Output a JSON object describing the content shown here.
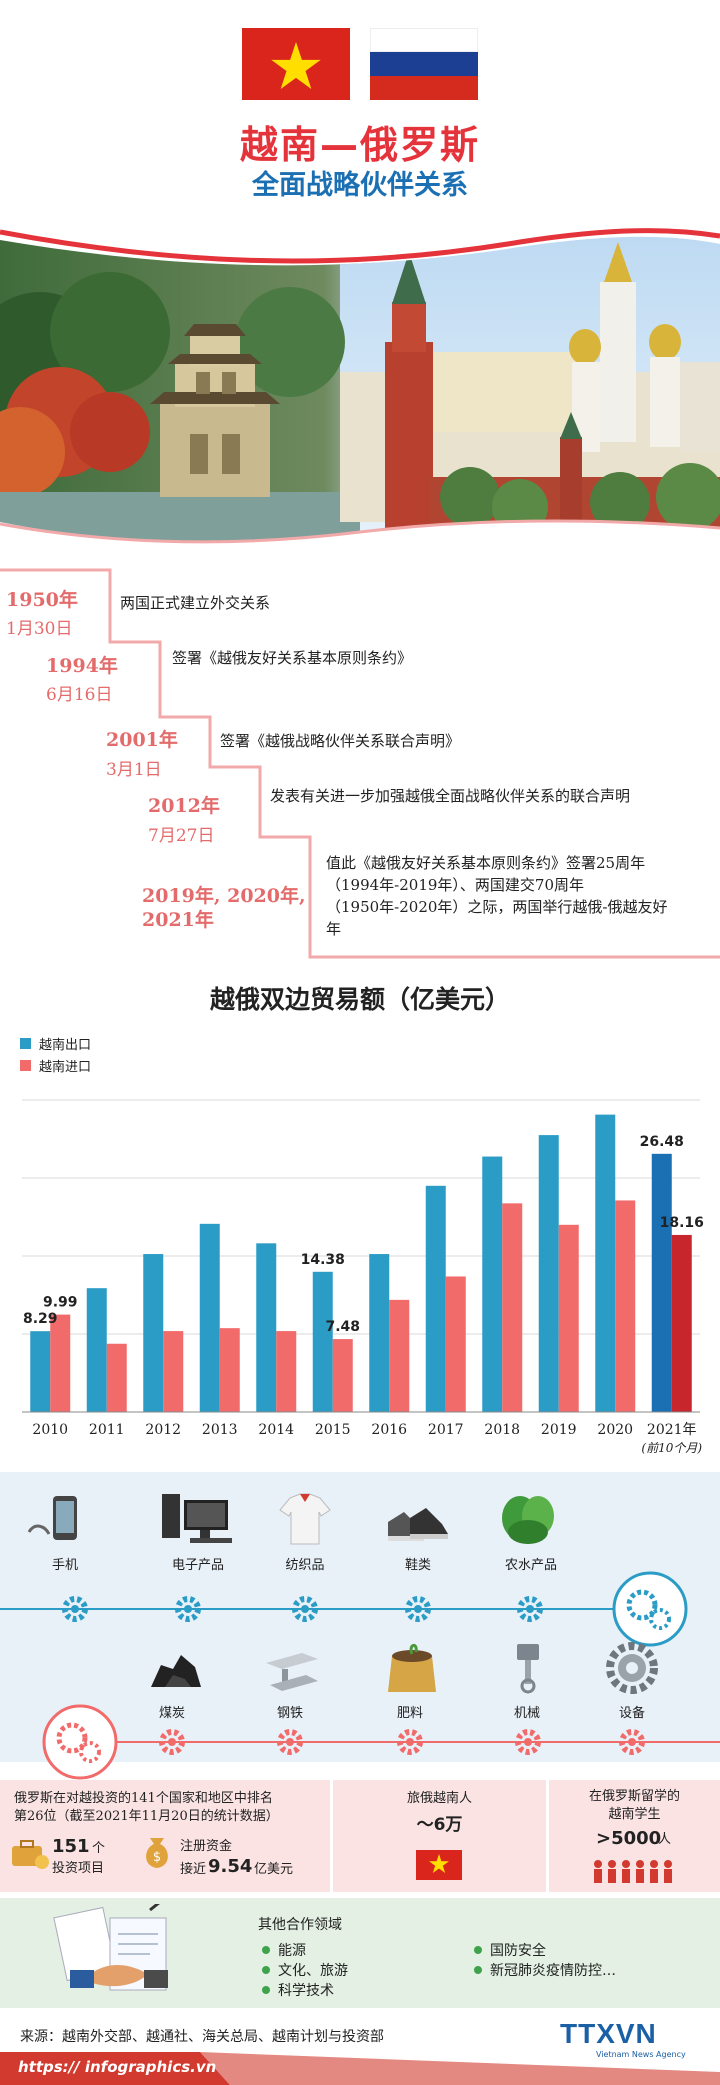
{
  "header": {
    "title": "越南—俄罗斯",
    "subtitle": "全面战略伙伴关系",
    "flag_vn": "vietnam-flag",
    "flag_ru": "russia-flag"
  },
  "timeline": [
    {
      "year": "1950年",
      "date": "1月30日",
      "text": "两国正式建立外交关系"
    },
    {
      "year": "1994年",
      "date": "6月16日",
      "text": "签署《越俄友好关系基本原则条约》"
    },
    {
      "year": "2001年",
      "date": "3月1日",
      "text": "签署《越俄战略伙伴关系联合声明》"
    },
    {
      "year": "2012年",
      "date": "7月27日",
      "text": "发表有关进一步加强越俄全面战略伙伴关系的联合声明"
    },
    {
      "year_line1": "2019年, 2020年,",
      "year_line2": "2021年",
      "text_lines": [
        "值此《越俄友好关系基本原则条约》签署25周年",
        "（1994年-2019年）、两国建交70周年",
        "（1950年-2020年）之际，两国举行越俄-俄越友好",
        "年"
      ]
    }
  ],
  "chart_data": {
    "type": "bar",
    "title": "越俄双边贸易额（亿美元）",
    "categories": [
      "2010",
      "2011",
      "2012",
      "2013",
      "2014",
      "2015",
      "2016",
      "2017",
      "2018",
      "2019",
      "2020",
      "2021年"
    ],
    "category_note": "(前10个月)",
    "series": [
      {
        "name": "越南出口",
        "color": "#2b9cc5",
        "values": [
          8.29,
          12.7,
          16.2,
          19.3,
          17.3,
          14.38,
          16.2,
          23.2,
          26.2,
          28.4,
          30.5,
          26.48
        ]
      },
      {
        "name": "越南进口",
        "color": "#f26b6b",
        "values": [
          9.99,
          7.0,
          8.3,
          8.6,
          8.3,
          7.48,
          11.5,
          13.9,
          21.4,
          19.2,
          21.7,
          18.16
        ]
      }
    ],
    "last_bar_colors": {
      "export": "#1b6fb3",
      "import": "#c8262d"
    },
    "data_labels": [
      {
        "series": 0,
        "index": 0,
        "text": "8.29"
      },
      {
        "series": 1,
        "index": 0,
        "text": "9.99"
      },
      {
        "series": 0,
        "index": 5,
        "text": "14.38"
      },
      {
        "series": 1,
        "index": 5,
        "text": "7.48"
      },
      {
        "series": 0,
        "index": 11,
        "text": "26.48"
      },
      {
        "series": 1,
        "index": 11,
        "text": "18.16"
      }
    ],
    "ylim": [
      0,
      32
    ],
    "grid": true
  },
  "products": {
    "exports": [
      {
        "label": "手机",
        "icon": "mobile-phone-icon"
      },
      {
        "label": "电子产品",
        "icon": "computer-icon"
      },
      {
        "label": "纺织品",
        "icon": "shirt-icon"
      },
      {
        "label": "鞋类",
        "icon": "sneakers-icon"
      },
      {
        "label": "农水产品",
        "icon": "vegetables-icon"
      }
    ],
    "imports": [
      {
        "label": "煤炭",
        "icon": "coal-icon"
      },
      {
        "label": "钢铁",
        "icon": "steel-beam-icon"
      },
      {
        "label": "肥料",
        "icon": "fertilizer-icon"
      },
      {
        "label": "机械",
        "icon": "piston-icon"
      },
      {
        "label": "设备",
        "icon": "gear-icon"
      }
    ]
  },
  "stats": {
    "investment_line1": "俄罗斯在对越投资的141个国家和地区中排名",
    "investment_line2": "第26位（截至2021年11月20日的统计数据）",
    "projects_value": "151",
    "projects_unit": "个",
    "projects_label": "投资项目",
    "capital_label": "注册资金",
    "capital_prefix": "接近",
    "capital_value": "9.54",
    "capital_unit": "亿美元",
    "tourists_label": "旅俄越南人",
    "tourists_value": "～6万",
    "students_line1": "在俄罗斯留学的",
    "students_line2": "越南学生",
    "students_value": ">5000",
    "students_unit": "人"
  },
  "cooperation": {
    "title": "其他合作领域",
    "items_left": [
      "能源",
      "文化、旅游",
      "科学技术"
    ],
    "items_right": [
      "国防安全",
      "新冠肺炎疫情防控…"
    ]
  },
  "footer": {
    "source": "来源：越南外交部、越通社、海关总局、越南计划与投资部",
    "url": "https:// infographics.vn",
    "logo": "TTXVN",
    "logo_sub": "Vietnam News Agency"
  },
  "colors": {
    "red": "#e5333b",
    "blue": "#1b6fb3",
    "salmon": "#e46b6b",
    "teal": "#2b9cc5"
  }
}
